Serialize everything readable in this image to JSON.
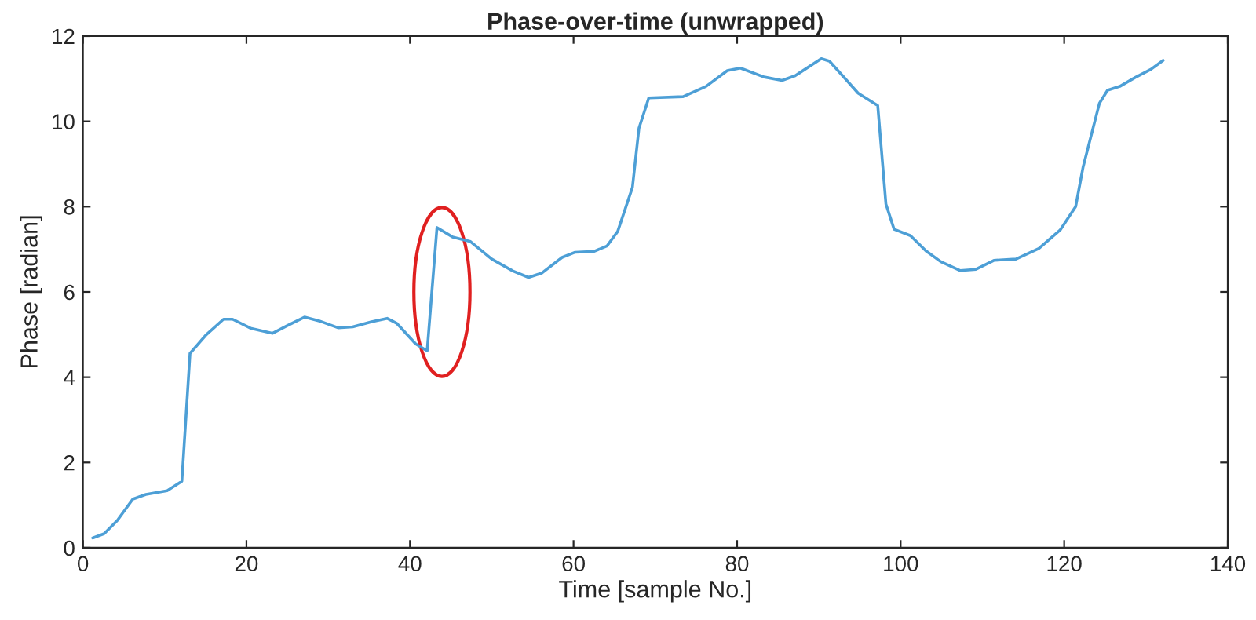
{
  "chart_data": {
    "type": "line",
    "title": "Phase-over-time (unwrapped)",
    "xlabel": "Time [sample No.]",
    "ylabel": "Phase [radian]",
    "xlim": [
      0,
      140
    ],
    "xticks": [
      0,
      20,
      40,
      60,
      80,
      100,
      120,
      140
    ],
    "ylim": [
      0,
      12
    ],
    "yticks": [
      0,
      2,
      4,
      6,
      8,
      10,
      12
    ],
    "marker": "none",
    "line_style": "solid",
    "series": [
      {
        "color": "#4d9fd6",
        "x": [
          1.2,
          2.6,
          4.2,
          6.1,
          7.7,
          10.3,
          12.1,
          13.1,
          15.1,
          17.2,
          18.3,
          20.5,
          23.2,
          25,
          27.1,
          28.9,
          31.2,
          33,
          35.3,
          37.2,
          38.4,
          40.7,
          42.1,
          43.3,
          45.2,
          47.4,
          50,
          52.6,
          54.5,
          56.1,
          58.6,
          60.2,
          62.5,
          64.1,
          65.4,
          67.2,
          68,
          69.2,
          73.4,
          76.2,
          78.8,
          80.4,
          83.3,
          85.5,
          87.1,
          90.3,
          91.3,
          92.9,
          94.8,
          97.2,
          98.2,
          99.2,
          101.2,
          103.1,
          104.9,
          107.3,
          109.2,
          111.4,
          114.1,
          116.9,
          119.5,
          121.4,
          122.3,
          124.3,
          125.3,
          126.8,
          128.7,
          130.6,
          132.1
        ],
        "values": [
          0.23,
          0.33,
          0.64,
          1.14,
          1.25,
          1.34,
          1.56,
          4.56,
          5.0,
          5.36,
          5.36,
          5.15,
          5.03,
          5.21,
          5.41,
          5.32,
          5.16,
          5.18,
          5.3,
          5.38,
          5.26,
          4.78,
          4.62,
          7.51,
          7.29,
          7.18,
          6.77,
          6.49,
          6.34,
          6.44,
          6.81,
          6.93,
          6.95,
          7.08,
          7.42,
          8.45,
          9.84,
          10.55,
          10.58,
          10.82,
          11.19,
          11.25,
          11.04,
          10.96,
          11.07,
          11.47,
          11.41,
          11.07,
          10.66,
          10.37,
          8.06,
          7.47,
          7.32,
          6.96,
          6.71,
          6.5,
          6.53,
          6.74,
          6.77,
          7.02,
          7.45,
          8.0,
          8.92,
          10.42,
          10.73,
          10.82,
          11.03,
          11.22,
          11.43
        ]
      }
    ]
  }
}
